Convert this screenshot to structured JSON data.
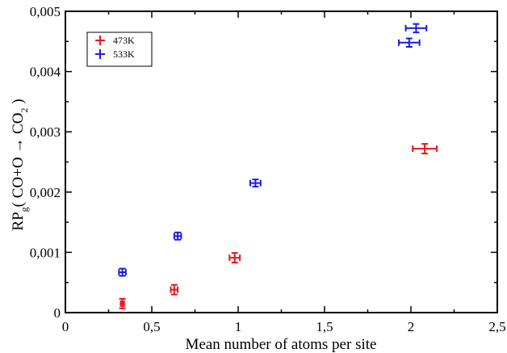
{
  "chart_data": {
    "type": "scatter",
    "title": "",
    "xlabel": "Mean number of atoms per site",
    "ylabel": {
      "prefix": "RP",
      "sub": "g",
      "open": "( CO+O ",
      "arrow": "→",
      "product": " CO",
      "product_sub": "2",
      "close": " )"
    },
    "xlim": [
      0,
      2.5
    ],
    "ylim": [
      0,
      0.005
    ],
    "xticks": [
      {
        "value": 0,
        "label": "0"
      },
      {
        "value": 0.5,
        "label": "0,5"
      },
      {
        "value": 1,
        "label": "1"
      },
      {
        "value": 1.5,
        "label": "1,5"
      },
      {
        "value": 2,
        "label": "2"
      },
      {
        "value": 2.5,
        "label": "2,5"
      }
    ],
    "yticks": [
      {
        "value": 0,
        "label": "0"
      },
      {
        "value": 0.001,
        "label": "0,001"
      },
      {
        "value": 0.002,
        "label": "0,002"
      },
      {
        "value": 0.003,
        "label": "0,003"
      },
      {
        "value": 0.004,
        "label": "0,004"
      },
      {
        "value": 0.005,
        "label": "0,005"
      }
    ],
    "grid": false,
    "legend_position": "top-left",
    "series": [
      {
        "name": "473K",
        "color": "#e8161b",
        "points": [
          {
            "x": 0.33,
            "y": 0.00015,
            "xerr": 0.01,
            "yerr": 8e-05
          },
          {
            "x": 0.63,
            "y": 0.00038,
            "xerr": 0.02,
            "yerr": 8e-05
          },
          {
            "x": 0.98,
            "y": 0.00091,
            "xerr": 0.03,
            "yerr": 8e-05
          },
          {
            "x": 2.08,
            "y": 0.00272,
            "xerr": 0.07,
            "yerr": 8e-05
          }
        ]
      },
      {
        "name": "533K",
        "color": "#1b1be8",
        "points": [
          {
            "x": 0.33,
            "y": 0.00067,
            "xerr": 0.02,
            "yerr": 6e-05
          },
          {
            "x": 0.65,
            "y": 0.00127,
            "xerr": 0.02,
            "yerr": 6e-05
          },
          {
            "x": 1.1,
            "y": 0.00215,
            "xerr": 0.03,
            "yerr": 6e-05
          },
          {
            "x": 1.99,
            "y": 0.00448,
            "xerr": 0.06,
            "yerr": 7e-05
          },
          {
            "x": 2.03,
            "y": 0.00472,
            "xerr": 0.06,
            "yerr": 7e-05
          }
        ]
      }
    ]
  }
}
